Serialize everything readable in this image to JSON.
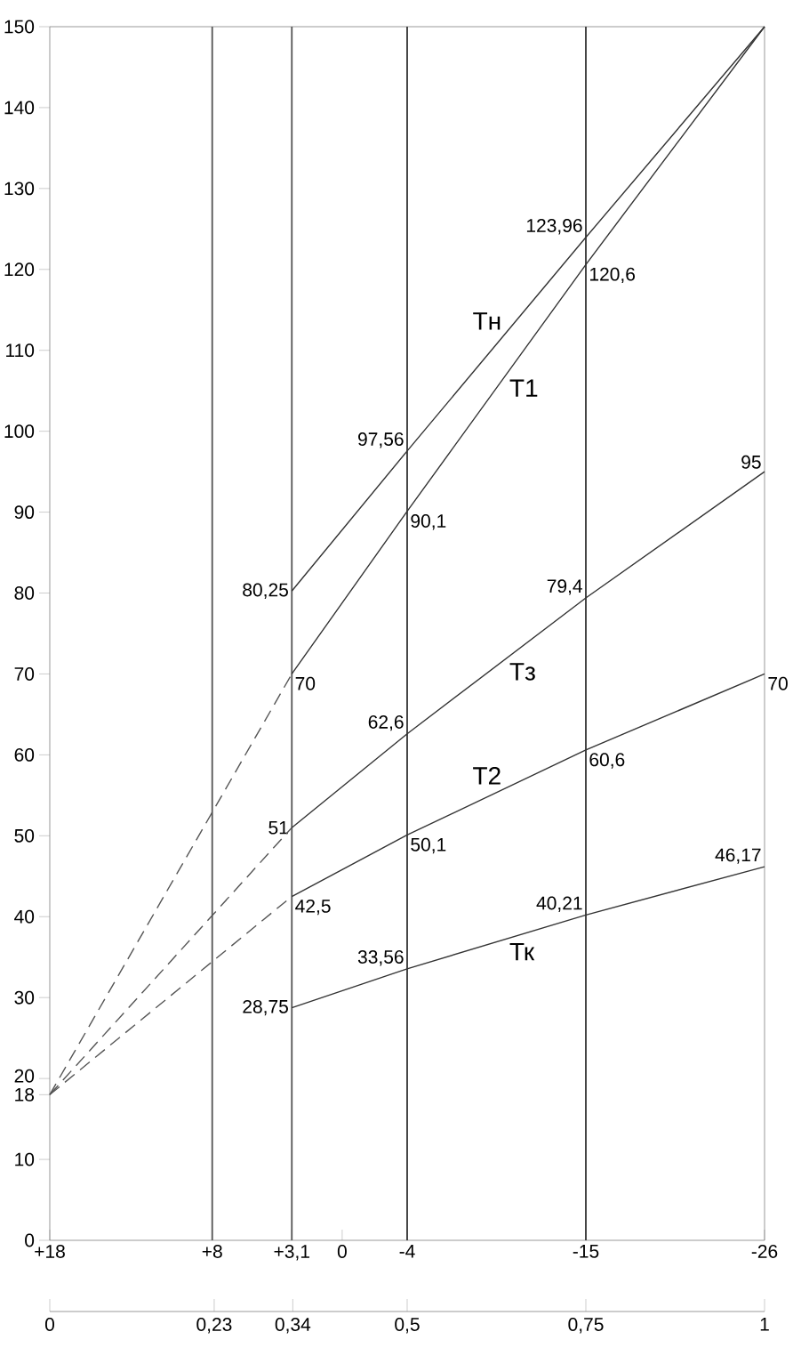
{
  "chart_data": {
    "type": "line",
    "xlim": [
      18,
      -26
    ],
    "xticks": [
      {
        "value": 18,
        "label": "+18"
      },
      {
        "value": 8,
        "label": "+8"
      },
      {
        "value": 3.1,
        "label": "+3,1"
      },
      0,
      -4,
      -15,
      -26
    ],
    "x2lim": [
      0,
      1
    ],
    "x2ticks": [
      0,
      {
        "value": 0.23,
        "label": "0,23"
      },
      {
        "value": 0.34,
        "label": "0,34"
      },
      {
        "value": 0.5,
        "label": "0,5"
      },
      {
        "value": 0.75,
        "label": "0,75"
      },
      1
    ],
    "ylim": [
      0,
      150
    ],
    "yticks": [
      0,
      10,
      18,
      20,
      30,
      40,
      50,
      60,
      70,
      80,
      90,
      100,
      110,
      120,
      130,
      140,
      150
    ],
    "ref_lines": [
      {
        "axis": "x",
        "value": 8,
        "color": "#555555"
      },
      {
        "axis": "x",
        "value": 3.1,
        "color": "#555555"
      },
      {
        "axis": "x",
        "value": -4,
        "color": "#333333"
      },
      {
        "axis": "x",
        "value": -15,
        "color": "#333333"
      }
    ],
    "marker": "none",
    "series": [
      {
        "name": "Тн",
        "color": "#333333",
        "x": [
          3.1,
          -4,
          -15,
          -26
        ],
        "values": [
          80.25,
          97.56,
          123.96,
          150
        ],
        "value_labels": [
          "80,25",
          "97,56",
          "123,96",
          null
        ]
      },
      {
        "name": "Т1",
        "color": "#333333",
        "x": [
          3.1,
          -4,
          -15,
          -26
        ],
        "values": [
          70,
          90.1,
          120.6,
          150
        ],
        "value_labels": [
          "70",
          "90,1",
          "120,6",
          null
        ]
      },
      {
        "name": "Тз",
        "color": "#333333",
        "x": [
          3.1,
          -4,
          -15,
          -26
        ],
        "values": [
          51,
          62.6,
          79.4,
          95
        ],
        "value_labels": [
          "51",
          "62,6",
          "79,4",
          "95"
        ]
      },
      {
        "name": "Т2",
        "color": "#333333",
        "x": [
          3.1,
          -4,
          -15,
          -26
        ],
        "values": [
          42.5,
          50.1,
          60.6,
          70
        ],
        "value_labels": [
          "42,5",
          "50,1",
          "60,6",
          "70"
        ]
      },
      {
        "name": "Тк",
        "color": "#333333",
        "x": [
          3.1,
          -4,
          -15,
          -26
        ],
        "values": [
          28.75,
          33.56,
          40.21,
          46.17
        ],
        "value_labels": [
          "28,75",
          "33,56",
          "40,21",
          "46,17"
        ]
      },
      {
        "color": "#555555",
        "line_style": "dashed",
        "x": [
          18,
          3.1
        ],
        "values": [
          18,
          70
        ]
      },
      {
        "color": "#555555",
        "line_style": "dashed",
        "x": [
          18,
          3.1
        ],
        "values": [
          18,
          51
        ]
      },
      {
        "color": "#555555",
        "line_style": "dashed",
        "x": [
          18,
          3.1
        ],
        "values": [
          18,
          42.5
        ]
      }
    ]
  }
}
